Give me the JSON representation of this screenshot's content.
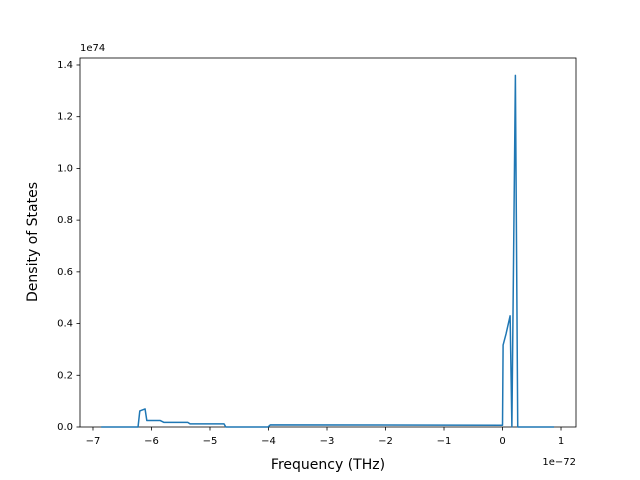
{
  "chart_data": {
    "type": "line",
    "x_label": "Frequency (THz)",
    "y_label": "Density of States",
    "x_offset": "1e−72",
    "y_offset": "1e74",
    "x": [
      -6.86,
      -6.23,
      -6.2,
      -6.11,
      -6.08,
      -5.85,
      -5.79,
      -5.38,
      -5.34,
      -4.76,
      -4.73,
      -4.01,
      -3.97,
      0.0,
      0.01,
      0.06,
      0.13,
      0.16,
      0.22,
      0.26,
      0.88
    ],
    "series": [
      {
        "color": "#1f77b4",
        "values": [
          0,
          0,
          0.062,
          0.07,
          0.025,
          0.025,
          0.018,
          0.018,
          0.012,
          0.012,
          0,
          0,
          0.008,
          0.007,
          0.317,
          0.36,
          0.43,
          0,
          1.36,
          0,
          0
        ]
      }
    ],
    "xlim": [
      -7.222,
      1.256
    ],
    "ylim": [
      0,
      1.427
    ],
    "xticks": [
      {
        "value": -7,
        "label": "−7"
      },
      {
        "value": -6,
        "label": "−6"
      },
      {
        "value": -5,
        "label": "−5"
      },
      {
        "value": -4,
        "label": "−4"
      },
      {
        "value": -3,
        "label": "−3"
      },
      {
        "value": -2,
        "label": "−2"
      },
      {
        "value": -1,
        "label": "−1"
      },
      0,
      1
    ],
    "yticks": [
      {
        "value": 0,
        "label": "0.0"
      },
      {
        "value": 0.2,
        "label": "0.2"
      },
      {
        "value": 0.4,
        "label": "0.4"
      },
      {
        "value": 0.6,
        "label": "0.6"
      },
      {
        "value": 0.8,
        "label": "0.8"
      },
      {
        "value": 1.0,
        "label": "1.0"
      },
      {
        "value": 1.2,
        "label": "1.2"
      },
      {
        "value": 1.4,
        "label": "1.4"
      }
    ]
  }
}
